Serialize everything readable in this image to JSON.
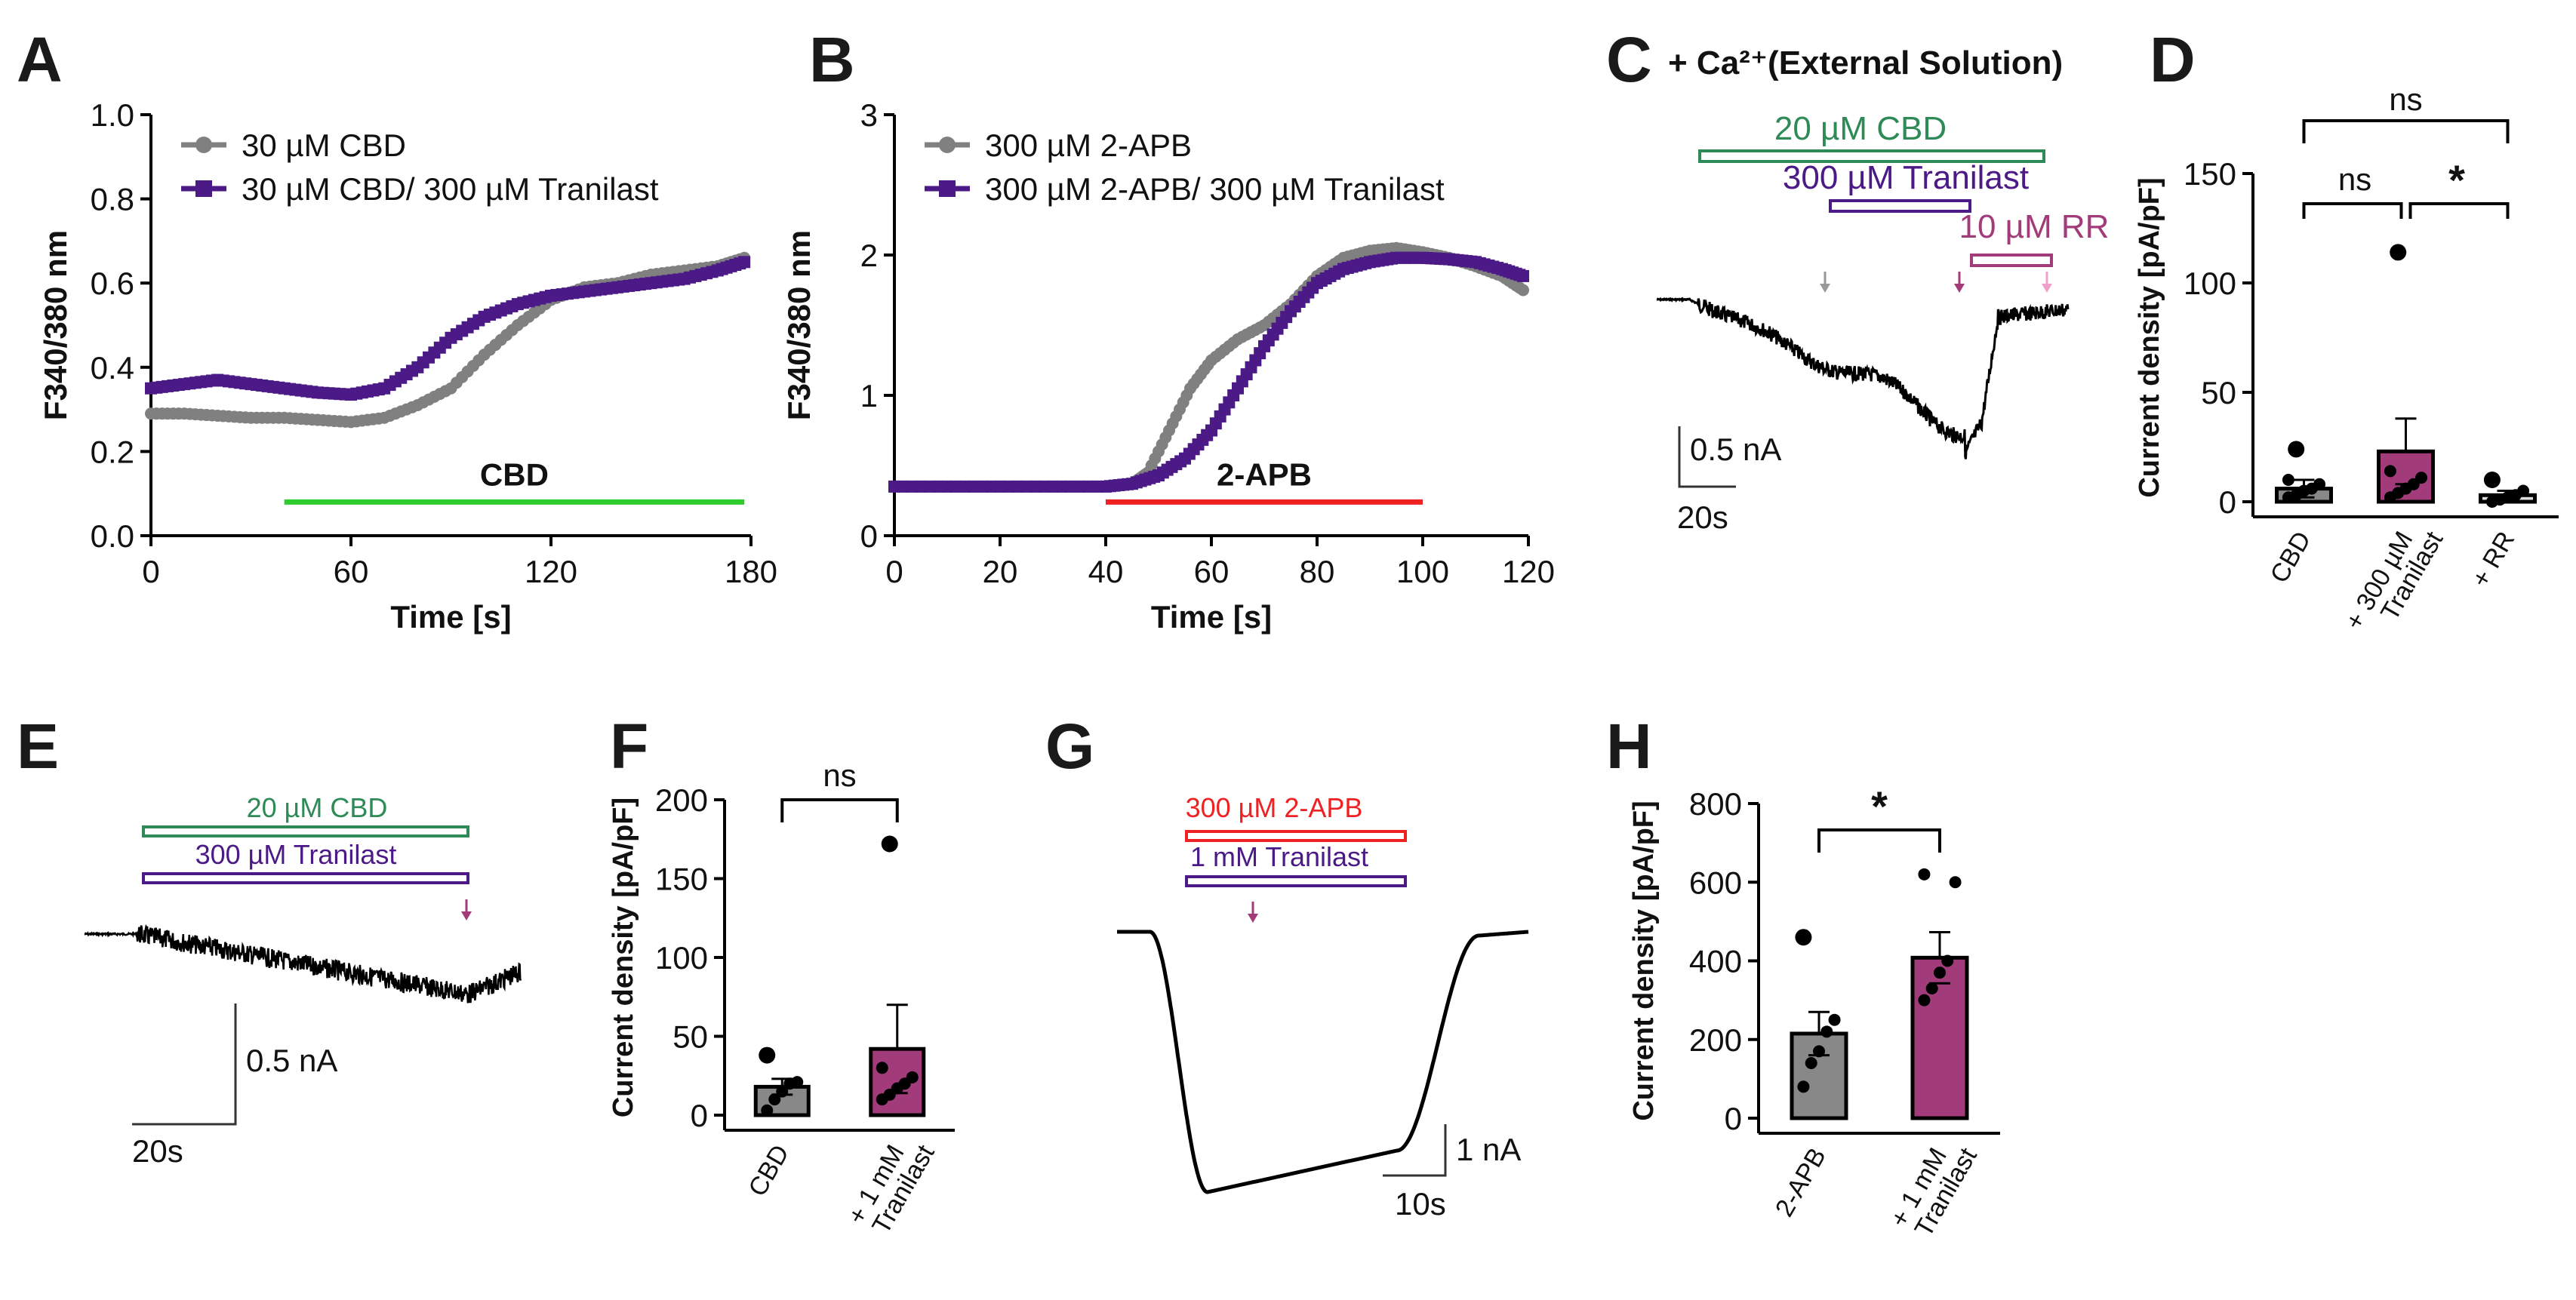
{
  "chart_data": [
    {
      "panel": "A",
      "type": "line",
      "xlabel": "Time [s]",
      "ylabel": "F340/380 nm",
      "xlim": [
        0,
        180
      ],
      "ylim": [
        0,
        1.0
      ],
      "xticks": [
        "0",
        "60",
        "120",
        "180"
      ],
      "yticks": [
        "0.0",
        "0.2",
        "0.4",
        "0.6",
        "0.8",
        "1.0"
      ],
      "series": [
        {
          "name": "30 µM CBD",
          "color": "#808080",
          "marker": "circle",
          "x": [
            0,
            10,
            20,
            30,
            40,
            50,
            60,
            70,
            80,
            90,
            100,
            110,
            120,
            130,
            140,
            150,
            160,
            170,
            178
          ],
          "y": [
            0.29,
            0.29,
            0.285,
            0.28,
            0.28,
            0.275,
            0.27,
            0.28,
            0.31,
            0.35,
            0.43,
            0.5,
            0.56,
            0.59,
            0.6,
            0.62,
            0.63,
            0.64,
            0.66
          ]
        },
        {
          "name": "30 µM CBD/ 300 µM Tranilast",
          "color": "#4b1a86",
          "marker": "square",
          "x": [
            0,
            10,
            20,
            30,
            40,
            50,
            60,
            70,
            80,
            90,
            100,
            110,
            120,
            130,
            140,
            150,
            160,
            170,
            178
          ],
          "y": [
            0.35,
            0.36,
            0.37,
            0.36,
            0.35,
            0.34,
            0.335,
            0.35,
            0.4,
            0.47,
            0.52,
            0.55,
            0.57,
            0.58,
            0.59,
            0.6,
            0.61,
            0.63,
            0.65
          ]
        }
      ],
      "bars": [
        {
          "label": "CBD",
          "start": 40,
          "end": 178,
          "color": "#2ecc2e"
        }
      ]
    },
    {
      "panel": "B",
      "type": "line",
      "xlabel": "Time [s]",
      "ylabel": "F340/380 nm",
      "xlim": [
        0,
        120
      ],
      "ylim": [
        0,
        3
      ],
      "xticks": [
        "0",
        "20",
        "40",
        "60",
        "80",
        "100",
        "120"
      ],
      "yticks": [
        "0",
        "1",
        "2",
        "3"
      ],
      "series": [
        {
          "name": "300 µM 2-APB",
          "color": "#808080",
          "marker": "circle",
          "x": [
            0,
            10,
            20,
            30,
            40,
            45,
            48,
            52,
            56,
            60,
            65,
            70,
            75,
            80,
            85,
            90,
            95,
            100,
            105,
            110,
            115,
            119
          ],
          "y": [
            0.35,
            0.35,
            0.35,
            0.35,
            0.35,
            0.37,
            0.45,
            0.75,
            1.05,
            1.25,
            1.4,
            1.5,
            1.65,
            1.85,
            1.98,
            2.03,
            2.05,
            2.02,
            1.98,
            1.92,
            1.85,
            1.75
          ]
        },
        {
          "name": "300 µM 2-APB/ 300 µM Tranilast",
          "color": "#4b1a86",
          "marker": "square",
          "x": [
            0,
            10,
            20,
            30,
            40,
            45,
            50,
            55,
            60,
            65,
            70,
            75,
            80,
            85,
            90,
            95,
            100,
            105,
            110,
            115,
            119
          ],
          "y": [
            0.35,
            0.35,
            0.35,
            0.35,
            0.35,
            0.37,
            0.43,
            0.55,
            0.75,
            1.05,
            1.35,
            1.6,
            1.8,
            1.9,
            1.95,
            1.98,
            1.98,
            1.97,
            1.95,
            1.9,
            1.85
          ]
        }
      ],
      "bars": [
        {
          "label": "2-APB",
          "start": 40,
          "end": 100,
          "color": "#ee2222"
        }
      ]
    },
    {
      "panel": "C",
      "type": "line",
      "title": "+ Ca²⁺(External Solution)",
      "application_bars": [
        {
          "label": "20 µM CBD",
          "color": "#2e8b57"
        },
        {
          "label": "300 µM Tranilast",
          "color": "#4b1a86"
        },
        {
          "label": "10 µM RR",
          "color": "#a23b7a"
        }
      ],
      "scale_bar": {
        "current": "0.5 nA",
        "time": "20s"
      }
    },
    {
      "panel": "D",
      "type": "bar",
      "ylabel": "Current density [pA/pF]",
      "categories": [
        "CBD",
        "+ 300 µM Tranilast",
        "+ RR"
      ],
      "category_lines": [
        [
          "CBD"
        ],
        [
          "+ 300 µM",
          "Tranilast"
        ],
        [
          "+ RR"
        ]
      ],
      "values": [
        6,
        23,
        3
      ],
      "errors": [
        4,
        15,
        2
      ],
      "bar_colors": [
        "#888888",
        "#a23b7a",
        "#dddddd"
      ],
      "points": [
        [
          2,
          3,
          5,
          6,
          8,
          10,
          24
        ],
        [
          2,
          4,
          6,
          8,
          11,
          14,
          114
        ],
        [
          0,
          1,
          2,
          3,
          5,
          10
        ]
      ],
      "ylim": [
        0,
        150
      ],
      "yticks": [
        "0",
        "50",
        "100",
        "150"
      ],
      "significance": [
        "ns",
        "ns",
        "*"
      ]
    },
    {
      "panel": "E",
      "type": "line",
      "application_bars": [
        {
          "label": "20 µM CBD",
          "color": "#2e8b57"
        },
        {
          "label": "300 µM Tranilast",
          "color": "#4b1a86"
        }
      ],
      "scale_bar": {
        "current": "0.5 nA",
        "time": "20s"
      }
    },
    {
      "panel": "F",
      "type": "bar",
      "ylabel": "Current density [pA/pF]",
      "categories": [
        "CBD",
        "+ 1 mM Tranilast"
      ],
      "category_lines": [
        [
          "CBD"
        ],
        [
          "+ 1 mM",
          "Tranilast"
        ]
      ],
      "values": [
        18,
        42
      ],
      "errors": [
        5,
        28
      ],
      "bar_colors": [
        "#888888",
        "#a23b7a"
      ],
      "points": [
        [
          3,
          10,
          15,
          20,
          21,
          38
        ],
        [
          10,
          13,
          17,
          20,
          24,
          30,
          172
        ]
      ],
      "ylim": [
        0,
        200
      ],
      "yticks": [
        "0",
        "50",
        "100",
        "150",
        "200"
      ],
      "significance": [
        "ns"
      ]
    },
    {
      "panel": "G",
      "type": "line",
      "application_bars": [
        {
          "label": "300 µM 2-APB",
          "color": "#ee2222"
        },
        {
          "label": "1 mM Tranilast",
          "color": "#4b1a86"
        }
      ],
      "scale_bar": {
        "current": "1 nA",
        "time": "10s"
      }
    },
    {
      "panel": "H",
      "type": "bar",
      "ylabel": "Current density [pA/pF]",
      "categories": [
        "2-APB",
        "+ 1 mM Tranilast"
      ],
      "category_lines": [
        [
          "2-APB"
        ],
        [
          "+ 1 mM",
          "Tranilast"
        ]
      ],
      "values": [
        215,
        408
      ],
      "errors": [
        55,
        65
      ],
      "bar_colors": [
        "#888888",
        "#a23b7a"
      ],
      "points": [
        [
          80,
          140,
          170,
          220,
          250,
          460
        ],
        [
          300,
          330,
          370,
          400,
          600,
          620
        ]
      ],
      "ylim": [
        0,
        800
      ],
      "yticks": [
        "0",
        "200",
        "400",
        "600",
        "800"
      ],
      "significance": [
        "*"
      ]
    }
  ]
}
